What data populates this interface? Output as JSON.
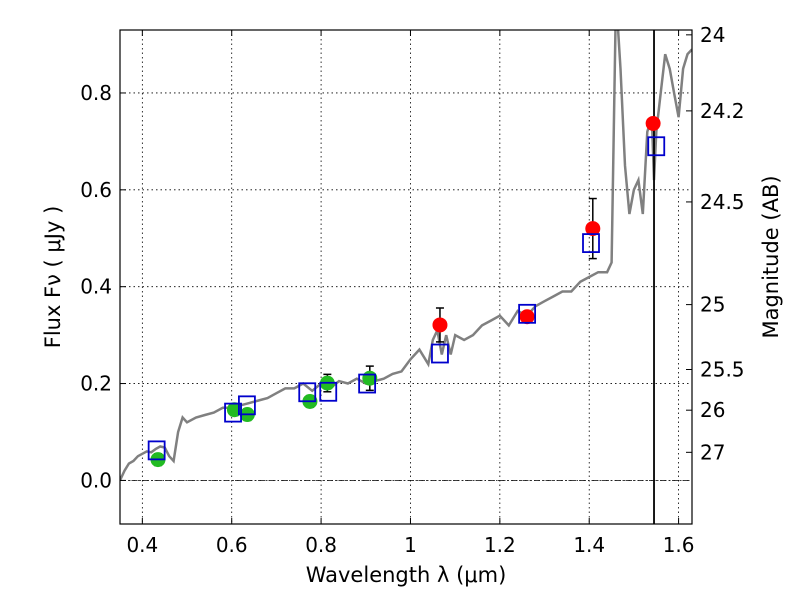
{
  "chart_data": {
    "type": "scatter",
    "title": "",
    "xlabel": "Wavelength  λ (μm)",
    "ylabel": "Flux  Fν  ( μJy )",
    "ylabel_right": "Magnitude (AB)",
    "xlim": [
      0.35,
      1.63
    ],
    "ylim": [
      -0.09,
      0.93
    ],
    "grid": true,
    "x_ticks": [
      {
        "value": 0.4,
        "label": "0.4"
      },
      {
        "value": 0.6,
        "label": "0.6"
      },
      {
        "value": 0.8,
        "label": "0.8"
      },
      {
        "value": 1.0,
        "label": "1"
      },
      {
        "value": 1.2,
        "label": "1.2"
      },
      {
        "value": 1.4,
        "label": "1.4"
      },
      {
        "value": 1.6,
        "label": "1.6"
      }
    ],
    "y_ticks": [
      {
        "value": 0.0,
        "label": "0.0"
      },
      {
        "value": 0.2,
        "label": "0.2"
      },
      {
        "value": 0.4,
        "label": "0.4"
      },
      {
        "value": 0.6,
        "label": "0.6"
      },
      {
        "value": 0.8,
        "label": "0.8"
      }
    ],
    "right_ticks": [
      {
        "flux": 0.92,
        "label": "24"
      },
      {
        "flux": 0.763,
        "label": "24.2"
      },
      {
        "flux": 0.575,
        "label": "24.5"
      },
      {
        "flux": 0.363,
        "label": "25"
      },
      {
        "flux": 0.229,
        "label": "25.5"
      },
      {
        "flux": 0.145,
        "label": "26"
      },
      {
        "flux": 0.058,
        "label": "27"
      }
    ],
    "vline_x": 1.545,
    "hline_y": 0.0,
    "model_spectrum": {
      "color": "#808080",
      "x": [
        0.35,
        0.36,
        0.37,
        0.38,
        0.39,
        0.4,
        0.41,
        0.42,
        0.43,
        0.44,
        0.45,
        0.46,
        0.47,
        0.48,
        0.49,
        0.5,
        0.52,
        0.54,
        0.56,
        0.58,
        0.6,
        0.62,
        0.64,
        0.66,
        0.68,
        0.7,
        0.72,
        0.74,
        0.76,
        0.78,
        0.8,
        0.82,
        0.84,
        0.86,
        0.88,
        0.9,
        0.92,
        0.94,
        0.96,
        0.98,
        1.0,
        1.02,
        1.04,
        1.05,
        1.06,
        1.07,
        1.08,
        1.09,
        1.1,
        1.12,
        1.14,
        1.16,
        1.18,
        1.2,
        1.22,
        1.24,
        1.26,
        1.28,
        1.3,
        1.32,
        1.34,
        1.36,
        1.38,
        1.4,
        1.42,
        1.44,
        1.45,
        1.46,
        1.47,
        1.48,
        1.49,
        1.5,
        1.51,
        1.52,
        1.53,
        1.54,
        1.545,
        1.55,
        1.56,
        1.57,
        1.58,
        1.59,
        1.6,
        1.61,
        1.62,
        1.63
      ],
      "y": [
        0.0,
        0.02,
        0.035,
        0.04,
        0.05,
        0.055,
        0.06,
        0.058,
        0.065,
        0.07,
        0.068,
        0.05,
        0.04,
        0.1,
        0.13,
        0.12,
        0.13,
        0.135,
        0.14,
        0.15,
        0.15,
        0.155,
        0.16,
        0.165,
        0.17,
        0.18,
        0.19,
        0.19,
        0.2,
        0.185,
        0.2,
        0.19,
        0.205,
        0.2,
        0.21,
        0.2,
        0.205,
        0.21,
        0.22,
        0.225,
        0.25,
        0.27,
        0.24,
        0.29,
        0.31,
        0.26,
        0.3,
        0.26,
        0.3,
        0.29,
        0.3,
        0.32,
        0.33,
        0.34,
        0.32,
        0.35,
        0.34,
        0.36,
        0.37,
        0.38,
        0.39,
        0.39,
        0.41,
        0.42,
        0.43,
        0.43,
        0.45,
        1.0,
        0.85,
        0.65,
        0.55,
        0.6,
        0.62,
        0.55,
        0.72,
        0.75,
        0.62,
        0.72,
        0.8,
        0.88,
        0.85,
        0.8,
        0.75,
        0.85,
        0.88,
        0.89
      ]
    },
    "series": [
      {
        "color": "#22bb22",
        "marker": "circle",
        "points": [
          {
            "x": 0.435,
            "y": 0.043,
            "err": 0.012
          },
          {
            "x": 0.606,
            "y": 0.146,
            "err": 0.012
          },
          {
            "x": 0.635,
            "y": 0.136,
            "err": 0.012
          },
          {
            "x": 0.775,
            "y": 0.163,
            "err": 0.012
          },
          {
            "x": 0.814,
            "y": 0.201,
            "err": 0.018
          },
          {
            "x": 0.909,
            "y": 0.211,
            "err": 0.025
          }
        ]
      },
      {
        "color": "#ff0000",
        "marker": "circle",
        "points": [
          {
            "x": 1.066,
            "y": 0.321,
            "err": 0.035
          },
          {
            "x": 1.261,
            "y": 0.338,
            "err": 0.0
          },
          {
            "x": 1.408,
            "y": 0.52,
            "err": 0.062
          },
          {
            "x": 1.543,
            "y": 0.737,
            "err": 0.0
          }
        ]
      },
      {
        "color": "#0000cc",
        "marker": "open-square",
        "points": [
          {
            "x": 0.432,
            "y": 0.062
          },
          {
            "x": 0.603,
            "y": 0.14
          },
          {
            "x": 0.634,
            "y": 0.155
          },
          {
            "x": 0.769,
            "y": 0.182
          },
          {
            "x": 0.816,
            "y": 0.183
          },
          {
            "x": 0.903,
            "y": 0.2
          },
          {
            "x": 1.066,
            "y": 0.262
          },
          {
            "x": 1.261,
            "y": 0.344
          },
          {
            "x": 1.404,
            "y": 0.49
          },
          {
            "x": 1.55,
            "y": 0.69
          }
        ]
      }
    ]
  }
}
